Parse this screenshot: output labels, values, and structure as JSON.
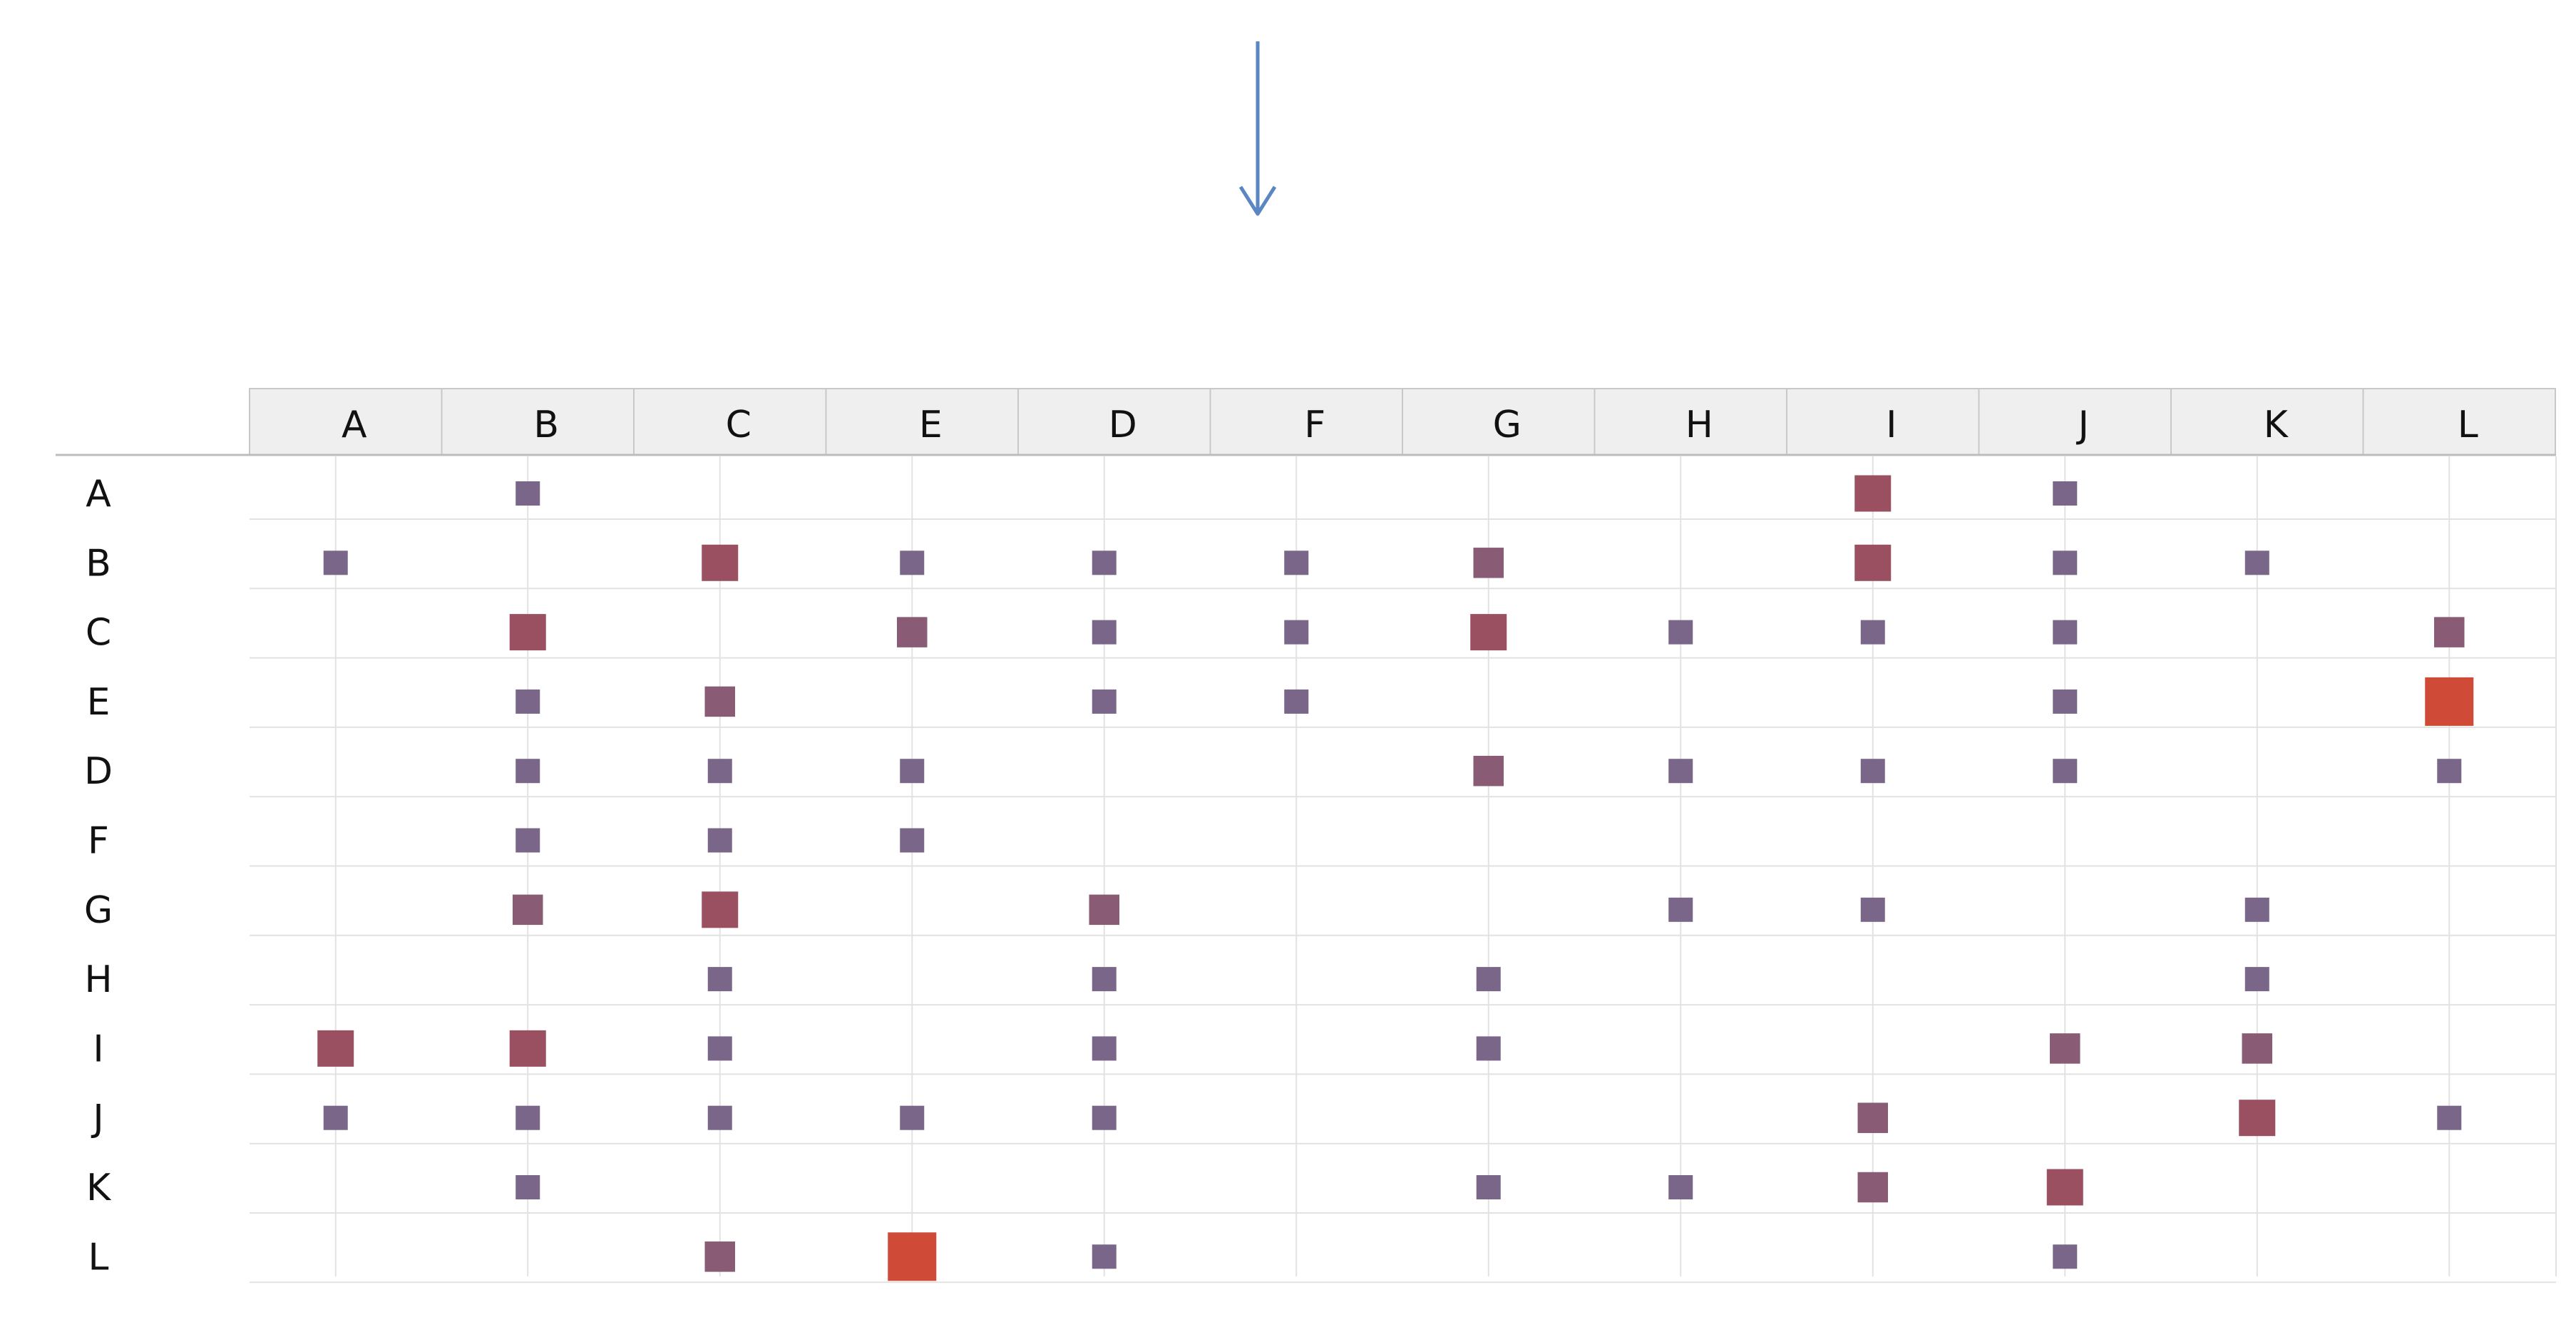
{
  "chart_data": {
    "type": "heatmap",
    "title": "",
    "xlabel": "",
    "ylabel": "",
    "columns": [
      "A",
      "B",
      "C",
      "E",
      "D",
      "F",
      "G",
      "H",
      "I",
      "J",
      "K",
      "L"
    ],
    "rows": [
      "A",
      "B",
      "C",
      "E",
      "D",
      "F",
      "G",
      "H",
      "I",
      "J",
      "K",
      "L"
    ],
    "value_scale": [
      1,
      3
    ],
    "color_low": "#7a6688",
    "color_mid": "#9a5060",
    "color_high": "#d04a38",
    "grid": true,
    "cells": [
      {
        "row": "A",
        "col": "B",
        "value": 1
      },
      {
        "row": "A",
        "col": "I",
        "value": 2
      },
      {
        "row": "A",
        "col": "J",
        "value": 1
      },
      {
        "row": "B",
        "col": "A",
        "value": 1
      },
      {
        "row": "B",
        "col": "C",
        "value": 2
      },
      {
        "row": "B",
        "col": "E",
        "value": 1
      },
      {
        "row": "B",
        "col": "D",
        "value": 1
      },
      {
        "row": "B",
        "col": "F",
        "value": 1
      },
      {
        "row": "B",
        "col": "G",
        "value": 1.5
      },
      {
        "row": "B",
        "col": "I",
        "value": 2
      },
      {
        "row": "B",
        "col": "J",
        "value": 1
      },
      {
        "row": "B",
        "col": "K",
        "value": 1
      },
      {
        "row": "C",
        "col": "B",
        "value": 2
      },
      {
        "row": "C",
        "col": "E",
        "value": 1.5
      },
      {
        "row": "C",
        "col": "D",
        "value": 1
      },
      {
        "row": "C",
        "col": "F",
        "value": 1
      },
      {
        "row": "C",
        "col": "G",
        "value": 2
      },
      {
        "row": "C",
        "col": "H",
        "value": 1
      },
      {
        "row": "C",
        "col": "I",
        "value": 1
      },
      {
        "row": "C",
        "col": "J",
        "value": 1
      },
      {
        "row": "C",
        "col": "L",
        "value": 1.5
      },
      {
        "row": "E",
        "col": "B",
        "value": 1
      },
      {
        "row": "E",
        "col": "C",
        "value": 1.5
      },
      {
        "row": "E",
        "col": "D",
        "value": 1
      },
      {
        "row": "E",
        "col": "F",
        "value": 1
      },
      {
        "row": "E",
        "col": "J",
        "value": 1
      },
      {
        "row": "E",
        "col": "L",
        "value": 3
      },
      {
        "row": "D",
        "col": "B",
        "value": 1
      },
      {
        "row": "D",
        "col": "C",
        "value": 1
      },
      {
        "row": "D",
        "col": "E",
        "value": 1
      },
      {
        "row": "D",
        "col": "G",
        "value": 1.5
      },
      {
        "row": "D",
        "col": "H",
        "value": 1
      },
      {
        "row": "D",
        "col": "I",
        "value": 1
      },
      {
        "row": "D",
        "col": "J",
        "value": 1
      },
      {
        "row": "D",
        "col": "L",
        "value": 1
      },
      {
        "row": "F",
        "col": "B",
        "value": 1
      },
      {
        "row": "F",
        "col": "C",
        "value": 1
      },
      {
        "row": "F",
        "col": "E",
        "value": 1
      },
      {
        "row": "G",
        "col": "B",
        "value": 1.5
      },
      {
        "row": "G",
        "col": "C",
        "value": 2
      },
      {
        "row": "G",
        "col": "D",
        "value": 1.5
      },
      {
        "row": "G",
        "col": "H",
        "value": 1
      },
      {
        "row": "G",
        "col": "I",
        "value": 1
      },
      {
        "row": "G",
        "col": "K",
        "value": 1
      },
      {
        "row": "H",
        "col": "C",
        "value": 1
      },
      {
        "row": "H",
        "col": "D",
        "value": 1
      },
      {
        "row": "H",
        "col": "G",
        "value": 1
      },
      {
        "row": "H",
        "col": "K",
        "value": 1
      },
      {
        "row": "I",
        "col": "A",
        "value": 2
      },
      {
        "row": "I",
        "col": "B",
        "value": 2
      },
      {
        "row": "I",
        "col": "C",
        "value": 1
      },
      {
        "row": "I",
        "col": "D",
        "value": 1
      },
      {
        "row": "I",
        "col": "G",
        "value": 1
      },
      {
        "row": "I",
        "col": "J",
        "value": 1.5
      },
      {
        "row": "I",
        "col": "K",
        "value": 1.5
      },
      {
        "row": "J",
        "col": "A",
        "value": 1
      },
      {
        "row": "J",
        "col": "B",
        "value": 1
      },
      {
        "row": "J",
        "col": "C",
        "value": 1
      },
      {
        "row": "J",
        "col": "E",
        "value": 1
      },
      {
        "row": "J",
        "col": "D",
        "value": 1
      },
      {
        "row": "J",
        "col": "I",
        "value": 1.5
      },
      {
        "row": "J",
        "col": "K",
        "value": 2
      },
      {
        "row": "J",
        "col": "L",
        "value": 1
      },
      {
        "row": "K",
        "col": "B",
        "value": 1
      },
      {
        "row": "K",
        "col": "G",
        "value": 1
      },
      {
        "row": "K",
        "col": "H",
        "value": 1
      },
      {
        "row": "K",
        "col": "I",
        "value": 1.5
      },
      {
        "row": "K",
        "col": "J",
        "value": 2
      },
      {
        "row": "L",
        "col": "C",
        "value": 1.5
      },
      {
        "row": "L",
        "col": "E",
        "value": 3
      },
      {
        "row": "L",
        "col": "D",
        "value": 1
      },
      {
        "row": "L",
        "col": "J",
        "value": 1
      }
    ]
  },
  "arrow": {
    "direction": "down",
    "color": "#5b86c4"
  },
  "colors": {
    "header_bg": "#efefef",
    "header_border": "#c8c8c8",
    "grid_line": "#e2e2e2",
    "baseline": "#bcbcbc"
  }
}
